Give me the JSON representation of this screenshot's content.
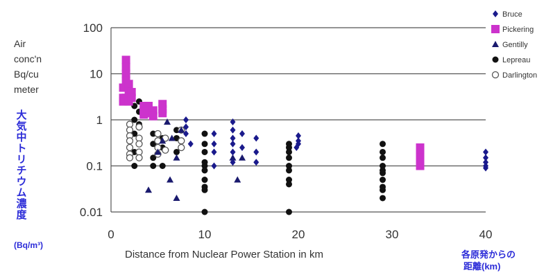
{
  "chart_data": {
    "type": "scatter",
    "xlabel": "Distance from Nuclear Power Station in km",
    "xlabel_jp": "各原発からの 距離(km)",
    "ylabel": "Air conc'n Bq/cu meter",
    "ylabel_jp": "大気中トリチウム濃度",
    "ylabel_jp_unit": "(Bq/m³)",
    "x_scale": "linear",
    "y_scale": "log",
    "xlim": [
      0,
      40
    ],
    "ylim": [
      0.01,
      100
    ],
    "x_ticks": [
      0,
      10,
      20,
      30,
      40
    ],
    "x_tick_labels": [
      "0",
      "10",
      "20",
      "30",
      "40"
    ],
    "y_ticks": [
      0.01,
      0.1,
      1,
      10,
      100
    ],
    "y_tick_labels": [
      "0.01",
      "0.1",
      "1",
      "10",
      "100"
    ],
    "grid": "horizontal",
    "legend_position": "top-right",
    "series": [
      {
        "name": "Bruce",
        "marker": "diamond",
        "color": "#1a1a8c",
        "points": [
          [
            8,
            1.0
          ],
          [
            8,
            0.7
          ],
          [
            8,
            0.5
          ],
          [
            8.5,
            0.3
          ],
          [
            11,
            0.5
          ],
          [
            11,
            0.3
          ],
          [
            11,
            0.2
          ],
          [
            11,
            0.1
          ],
          [
            13,
            0.9
          ],
          [
            13,
            0.6
          ],
          [
            13,
            0.4
          ],
          [
            13,
            0.3
          ],
          [
            13,
            0.2
          ],
          [
            13,
            0.12
          ],
          [
            14,
            0.5
          ],
          [
            14,
            0.25
          ],
          [
            15.5,
            0.4
          ],
          [
            15.5,
            0.2
          ],
          [
            15.5,
            0.12
          ],
          [
            20,
            0.45
          ],
          [
            20,
            0.35
          ],
          [
            20,
            0.3
          ],
          [
            19.8,
            0.25
          ],
          [
            40,
            0.2
          ],
          [
            40,
            0.15
          ],
          [
            40,
            0.12
          ],
          [
            40,
            0.1
          ],
          [
            40,
            0.09
          ]
        ]
      },
      {
        "name": "Pickering",
        "marker": "square",
        "color": "#cc33cc",
        "points": [
          [
            1.3,
            5
          ],
          [
            1.3,
            3
          ],
          [
            1.3,
            2.5
          ],
          [
            1.6,
            20
          ],
          [
            1.6,
            14
          ],
          [
            1.6,
            10
          ],
          [
            1.6,
            7
          ],
          [
            1.6,
            5
          ],
          [
            1.6,
            3
          ],
          [
            1.9,
            6
          ],
          [
            1.9,
            4
          ],
          [
            1.9,
            2.5
          ],
          [
            2.2,
            4
          ],
          [
            2.2,
            3
          ],
          [
            3.5,
            2
          ],
          [
            3.5,
            1.5
          ],
          [
            3.5,
            1.3
          ],
          [
            4,
            2
          ],
          [
            4,
            1.4
          ],
          [
            4.5,
            1.6
          ],
          [
            4.5,
            1.2
          ],
          [
            5.5,
            2.2
          ],
          [
            5.5,
            1.7
          ],
          [
            5.5,
            1.4
          ],
          [
            33,
            0.25
          ],
          [
            33,
            0.2
          ],
          [
            33,
            0.15
          ],
          [
            33,
            0.12
          ],
          [
            33,
            0.1
          ]
        ]
      },
      {
        "name": "Gentilly",
        "marker": "triangle",
        "color": "#1a1a6e",
        "points": [
          [
            4,
            0.03
          ],
          [
            5,
            0.2
          ],
          [
            5.5,
            0.35
          ],
          [
            6,
            0.9
          ],
          [
            6.3,
            0.05
          ],
          [
            6.5,
            0.4
          ],
          [
            7,
            0.02
          ],
          [
            7,
            0.15
          ],
          [
            7.5,
            0.6
          ],
          [
            13,
            0.15
          ],
          [
            13.5,
            0.05
          ],
          [
            14,
            0.15
          ]
        ]
      },
      {
        "name": "Lepreau",
        "marker": "circle",
        "color": "#111111",
        "points": [
          [
            2.5,
            0.1
          ],
          [
            2.5,
            0.2
          ],
          [
            2.5,
            0.5
          ],
          [
            2.5,
            1.0
          ],
          [
            2.5,
            2.0
          ],
          [
            3,
            2.5
          ],
          [
            3,
            1.5
          ],
          [
            3,
            0.8
          ],
          [
            4.5,
            0.5
          ],
          [
            4.5,
            0.3
          ],
          [
            4.5,
            0.15
          ],
          [
            4.5,
            0.1
          ],
          [
            5.5,
            0.4
          ],
          [
            5.5,
            0.25
          ],
          [
            5.5,
            0.1
          ],
          [
            7,
            0.6
          ],
          [
            7,
            0.4
          ],
          [
            7,
            0.2
          ],
          [
            10,
            0.5
          ],
          [
            10,
            0.3
          ],
          [
            10,
            0.2
          ],
          [
            10,
            0.12
          ],
          [
            10,
            0.1
          ],
          [
            10,
            0.08
          ],
          [
            10,
            0.05
          ],
          [
            10,
            0.035
          ],
          [
            10,
            0.03
          ],
          [
            10,
            0.01
          ],
          [
            19,
            0.3
          ],
          [
            19,
            0.25
          ],
          [
            19,
            0.2
          ],
          [
            19,
            0.15
          ],
          [
            19,
            0.1
          ],
          [
            19,
            0.08
          ],
          [
            19,
            0.05
          ],
          [
            19,
            0.04
          ],
          [
            19,
            0.01
          ],
          [
            29,
            0.3
          ],
          [
            29,
            0.2
          ],
          [
            29,
            0.15
          ],
          [
            29,
            0.1
          ],
          [
            29,
            0.08
          ],
          [
            29,
            0.07
          ],
          [
            29,
            0.05
          ],
          [
            29,
            0.035
          ],
          [
            29,
            0.03
          ],
          [
            29,
            0.02
          ]
        ]
      },
      {
        "name": "Darlington",
        "marker": "open-circle",
        "color": "#555555",
        "points": [
          [
            2,
            0.8
          ],
          [
            2,
            0.6
          ],
          [
            2,
            0.45
          ],
          [
            2,
            0.35
          ],
          [
            2,
            0.25
          ],
          [
            2,
            0.18
          ],
          [
            2,
            0.15
          ],
          [
            3,
            0.7
          ],
          [
            3,
            0.4
          ],
          [
            3,
            0.3
          ],
          [
            3,
            0.2
          ],
          [
            3,
            0.15
          ],
          [
            5,
            0.5
          ],
          [
            5,
            0.35
          ],
          [
            5,
            0.25
          ],
          [
            5,
            0.18
          ],
          [
            5.8,
            0.4
          ],
          [
            5.8,
            0.22
          ],
          [
            7.5,
            0.6
          ],
          [
            7.5,
            0.35
          ],
          [
            7.5,
            0.25
          ]
        ]
      }
    ]
  }
}
